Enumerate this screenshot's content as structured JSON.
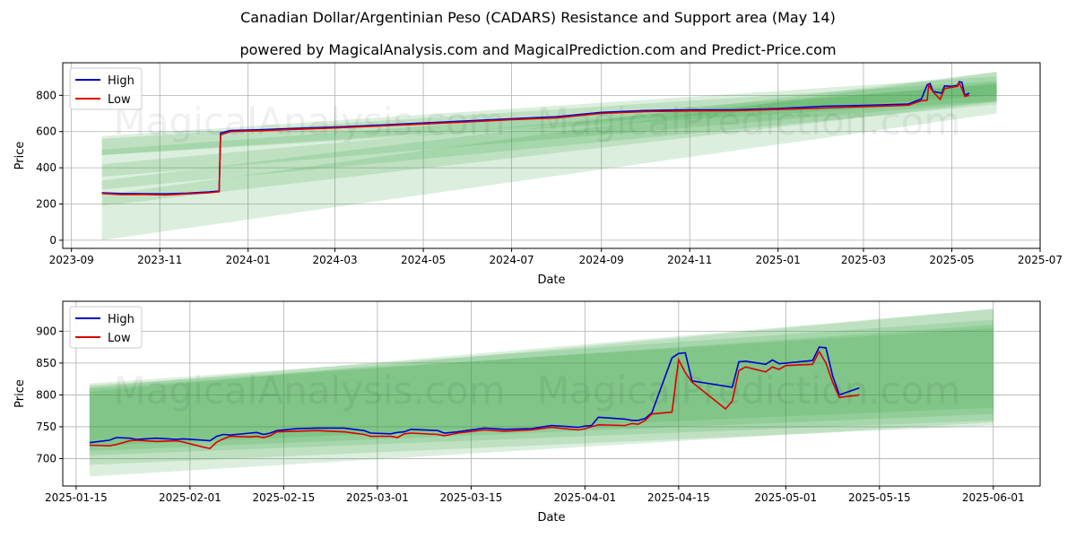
{
  "title": "Canadian Dollar/Argentinian Peso (CADARS) Resistance and Support area (May 14)",
  "subtitle": "powered by MagicalAnalysis.com and MagicalPrediction.com and Predict-Price.com",
  "watermarks": [
    "MagicalAnalysis.com",
    "MagicalPrediction.com"
  ],
  "colors": {
    "high": "#0000cc",
    "low": "#dd0000",
    "band": "#2e9e3a",
    "grid": "#b0b0b0"
  },
  "chart_data": [
    {
      "type": "line",
      "xlabel": "Date",
      "ylabel": "Price",
      "x_ticks": [
        "2023-09",
        "2023-11",
        "2024-01",
        "2024-03",
        "2024-05",
        "2024-07",
        "2024-09",
        "2024-11",
        "2025-01",
        "2025-03",
        "2025-05",
        "2025-07"
      ],
      "y_ticks": [
        0,
        200,
        400,
        600,
        800
      ],
      "xlim": [
        "2023-08-26",
        "2025-07-01"
      ],
      "ylim": [
        -45,
        980
      ],
      "grid": true,
      "legend": "top-left",
      "series": [
        {
          "name": "High",
          "color": "#0000cc",
          "points": [
            [
              "2023-09-22",
              262
            ],
            [
              "2023-10-05",
              258
            ],
            [
              "2023-10-20",
              257
            ],
            [
              "2023-11-05",
              256
            ],
            [
              "2023-11-20",
              260
            ],
            [
              "2023-12-05",
              267
            ],
            [
              "2023-12-12",
              272
            ],
            [
              "2023-12-13",
              592
            ],
            [
              "2023-12-20",
              606
            ],
            [
              "2024-01-10",
              610
            ],
            [
              "2024-02-01",
              617
            ],
            [
              "2024-03-01",
              625
            ],
            [
              "2024-04-01",
              636
            ],
            [
              "2024-05-01",
              647
            ],
            [
              "2024-06-01",
              659
            ],
            [
              "2024-07-01",
              671
            ],
            [
              "2024-08-01",
              682
            ],
            [
              "2024-09-01",
              706
            ],
            [
              "2024-10-01",
              716
            ],
            [
              "2024-11-01",
              720
            ],
            [
              "2024-12-01",
              720
            ],
            [
              "2025-01-01",
              727
            ],
            [
              "2025-02-01",
              740
            ],
            [
              "2025-03-01",
              745
            ],
            [
              "2025-04-01",
              752
            ],
            [
              "2025-04-10",
              780
            ],
            [
              "2025-04-14",
              858
            ],
            [
              "2025-04-16",
              865
            ],
            [
              "2025-04-18",
              822
            ],
            [
              "2025-04-24",
              812
            ],
            [
              "2025-04-26",
              852
            ],
            [
              "2025-05-01",
              850
            ],
            [
              "2025-05-05",
              855
            ],
            [
              "2025-05-06",
              875
            ],
            [
              "2025-05-08",
              872
            ],
            [
              "2025-05-10",
              800
            ],
            [
              "2025-05-13",
              812
            ]
          ]
        },
        {
          "name": "Low",
          "color": "#dd0000",
          "points": [
            [
              "2023-09-22",
              258
            ],
            [
              "2023-10-05",
              252
            ],
            [
              "2023-10-20",
              253
            ],
            [
              "2023-11-05",
              250
            ],
            [
              "2023-11-20",
              256
            ],
            [
              "2023-12-05",
              262
            ],
            [
              "2023-12-12",
              268
            ],
            [
              "2023-12-13",
              582
            ],
            [
              "2023-12-20",
              600
            ],
            [
              "2024-01-10",
              605
            ],
            [
              "2024-02-01",
              612
            ],
            [
              "2024-03-01",
              620
            ],
            [
              "2024-04-01",
              631
            ],
            [
              "2024-05-01",
              642
            ],
            [
              "2024-06-01",
              653
            ],
            [
              "2024-07-01",
              666
            ],
            [
              "2024-08-01",
              676
            ],
            [
              "2024-09-01",
              700
            ],
            [
              "2024-10-01",
              710
            ],
            [
              "2024-11-01",
              714
            ],
            [
              "2024-12-01",
              715
            ],
            [
              "2025-01-01",
              722
            ],
            [
              "2025-02-01",
              730
            ],
            [
              "2025-03-01",
              738
            ],
            [
              "2025-04-01",
              746
            ],
            [
              "2025-04-10",
              770
            ],
            [
              "2025-04-14",
              773
            ],
            [
              "2025-04-15",
              855
            ],
            [
              "2025-04-18",
              820
            ],
            [
              "2025-04-23",
              778
            ],
            [
              "2025-04-26",
              838
            ],
            [
              "2025-05-01",
              845
            ],
            [
              "2025-05-05",
              850
            ],
            [
              "2025-05-06",
              868
            ],
            [
              "2025-05-08",
              838
            ],
            [
              "2025-05-10",
              795
            ],
            [
              "2025-05-13",
              800
            ]
          ]
        }
      ],
      "bands": [
        {
          "x": [
            "2023-09-22",
            "2025-06-01"
          ],
          "upper": [
            575,
            905
          ],
          "lower": [
            470,
            800
          ]
        },
        {
          "x": [
            "2023-09-22",
            "2025-06-01"
          ],
          "upper": [
            560,
            880
          ],
          "lower": [
            470,
            770
          ]
        },
        {
          "x": [
            "2023-09-22",
            "2025-06-01"
          ],
          "upper": [
            500,
            860
          ],
          "lower": [
            350,
            765
          ]
        },
        {
          "x": [
            "2023-09-22",
            "2025-06-01"
          ],
          "upper": [
            420,
            870
          ],
          "lower": [
            280,
            750
          ]
        },
        {
          "x": [
            "2023-09-22",
            "2025-06-01"
          ],
          "upper": [
            330,
            930
          ],
          "lower": [
            190,
            765
          ]
        },
        {
          "x": [
            "2023-09-22",
            "2025-06-01"
          ],
          "upper": [
            250,
            930
          ],
          "lower": [
            0,
            700
          ]
        }
      ]
    },
    {
      "type": "line",
      "xlabel": "Date",
      "ylabel": "Price",
      "x_ticks": [
        "2025-01-15",
        "2025-02-01",
        "2025-02-15",
        "2025-03-01",
        "2025-03-15",
        "2025-04-01",
        "2025-04-15",
        "2025-05-01",
        "2025-05-15",
        "2025-06-01"
      ],
      "y_ticks": [
        700,
        750,
        800,
        850,
        900
      ],
      "xlim": [
        "2025-01-13",
        "2025-06-08"
      ],
      "ylim": [
        657,
        947
      ],
      "grid": true,
      "legend": "top-left",
      "series": [
        {
          "name": "High",
          "color": "#0000cc",
          "points": [
            [
              "2025-01-17",
              725
            ],
            [
              "2025-01-20",
              729
            ],
            [
              "2025-01-21",
              733
            ],
            [
              "2025-01-23",
              732
            ],
            [
              "2025-01-24",
              730
            ],
            [
              "2025-01-27",
              732
            ],
            [
              "2025-01-30",
              730
            ],
            [
              "2025-01-31",
              731
            ],
            [
              "2025-02-03",
              729
            ],
            [
              "2025-02-04",
              728
            ],
            [
              "2025-02-05",
              735
            ],
            [
              "2025-02-06",
              738
            ],
            [
              "2025-02-07",
              737
            ],
            [
              "2025-02-10",
              740
            ],
            [
              "2025-02-11",
              741
            ],
            [
              "2025-02-12",
              738
            ],
            [
              "2025-02-13",
              740
            ],
            [
              "2025-02-14",
              744
            ],
            [
              "2025-02-17",
              747
            ],
            [
              "2025-02-20",
              748
            ],
            [
              "2025-02-24",
              748
            ],
            [
              "2025-02-27",
              744
            ],
            [
              "2025-02-28",
              740
            ],
            [
              "2025-03-03",
              739
            ],
            [
              "2025-03-04",
              741
            ],
            [
              "2025-03-05",
              742
            ],
            [
              "2025-03-06",
              746
            ],
            [
              "2025-03-10",
              744
            ],
            [
              "2025-03-11",
              740
            ],
            [
              "2025-03-13",
              742
            ],
            [
              "2025-03-17",
              748
            ],
            [
              "2025-03-20",
              746
            ],
            [
              "2025-03-24",
              747
            ],
            [
              "2025-03-27",
              752
            ],
            [
              "2025-03-31",
              749
            ],
            [
              "2025-04-01",
              751
            ],
            [
              "2025-04-02",
              752
            ],
            [
              "2025-04-03",
              765
            ],
            [
              "2025-04-07",
              762
            ],
            [
              "2025-04-08",
              760
            ],
            [
              "2025-04-09",
              760
            ],
            [
              "2025-04-10",
              763
            ],
            [
              "2025-04-11",
              772
            ],
            [
              "2025-04-14",
              858
            ],
            [
              "2025-04-15",
              865
            ],
            [
              "2025-04-16",
              866
            ],
            [
              "2025-04-17",
              822
            ],
            [
              "2025-04-23",
              812
            ],
            [
              "2025-04-24",
              852
            ],
            [
              "2025-04-25",
              853
            ],
            [
              "2025-04-28",
              848
            ],
            [
              "2025-04-29",
              855
            ],
            [
              "2025-04-30",
              849
            ],
            [
              "2025-05-01",
              850
            ],
            [
              "2025-05-05",
              854
            ],
            [
              "2025-05-06",
              875
            ],
            [
              "2025-05-07",
              874
            ],
            [
              "2025-05-08",
              830
            ],
            [
              "2025-05-09",
              800
            ],
            [
              "2025-05-12",
              811
            ]
          ]
        },
        {
          "name": "Low",
          "color": "#dd0000",
          "points": [
            [
              "2025-01-17",
              721
            ],
            [
              "2025-01-20",
              720
            ],
            [
              "2025-01-21",
              722
            ],
            [
              "2025-01-23",
              728
            ],
            [
              "2025-01-24",
              729
            ],
            [
              "2025-01-27",
              727
            ],
            [
              "2025-01-30",
              728
            ],
            [
              "2025-01-31",
              726
            ],
            [
              "2025-02-03",
              718
            ],
            [
              "2025-02-04",
              716
            ],
            [
              "2025-02-05",
              726
            ],
            [
              "2025-02-06",
              731
            ],
            [
              "2025-02-07",
              735
            ],
            [
              "2025-02-10",
              734
            ],
            [
              "2025-02-11",
              735
            ],
            [
              "2025-02-12",
              733
            ],
            [
              "2025-02-13",
              736
            ],
            [
              "2025-02-14",
              742
            ],
            [
              "2025-02-17",
              743
            ],
            [
              "2025-02-20",
              744
            ],
            [
              "2025-02-24",
              742
            ],
            [
              "2025-02-27",
              738
            ],
            [
              "2025-02-28",
              735
            ],
            [
              "2025-03-03",
              735
            ],
            [
              "2025-03-04",
              733
            ],
            [
              "2025-03-05",
              739
            ],
            [
              "2025-03-06",
              740
            ],
            [
              "2025-03-10",
              738
            ],
            [
              "2025-03-11",
              736
            ],
            [
              "2025-03-13",
              740
            ],
            [
              "2025-03-17",
              745
            ],
            [
              "2025-03-20",
              743
            ],
            [
              "2025-03-24",
              745
            ],
            [
              "2025-03-27",
              749
            ],
            [
              "2025-03-31",
              745
            ],
            [
              "2025-04-01",
              747
            ],
            [
              "2025-04-02",
              750
            ],
            [
              "2025-04-03",
              753
            ],
            [
              "2025-04-07",
              752
            ],
            [
              "2025-04-08",
              755
            ],
            [
              "2025-04-09",
              754
            ],
            [
              "2025-04-10",
              760
            ],
            [
              "2025-04-11",
              770
            ],
            [
              "2025-04-14",
              773
            ],
            [
              "2025-04-15",
              855
            ],
            [
              "2025-04-16",
              835
            ],
            [
              "2025-04-17",
              820
            ],
            [
              "2025-04-22",
              778
            ],
            [
              "2025-04-23",
              790
            ],
            [
              "2025-04-24",
              838
            ],
            [
              "2025-04-25",
              844
            ],
            [
              "2025-04-28",
              836
            ],
            [
              "2025-04-29",
              844
            ],
            [
              "2025-04-30",
              840
            ],
            [
              "2025-05-01",
              846
            ],
            [
              "2025-05-05",
              848
            ],
            [
              "2025-05-06",
              868
            ],
            [
              "2025-05-07",
              850
            ],
            [
              "2025-05-08",
              820
            ],
            [
              "2025-05-09",
              796
            ],
            [
              "2025-05-12",
              800
            ]
          ]
        }
      ],
      "bands": [
        {
          "x": [
            "2025-01-17",
            "2025-06-01"
          ],
          "upper": [
            810,
            910
          ],
          "lower": [
            720,
            780
          ]
        },
        {
          "x": [
            "2025-01-17",
            "2025-06-01"
          ],
          "upper": [
            815,
            905
          ],
          "lower": [
            712,
            770
          ]
        },
        {
          "x": [
            "2025-01-17",
            "2025-06-01"
          ],
          "upper": [
            818,
            918
          ],
          "lower": [
            705,
            760
          ]
        },
        {
          "x": [
            "2025-01-17",
            "2025-06-01"
          ],
          "upper": [
            812,
            935
          ],
          "lower": [
            690,
            752
          ]
        },
        {
          "x": [
            "2025-01-17",
            "2025-06-01"
          ],
          "upper": [
            805,
            935
          ],
          "lower": [
            672,
            757
          ]
        }
      ]
    }
  ]
}
